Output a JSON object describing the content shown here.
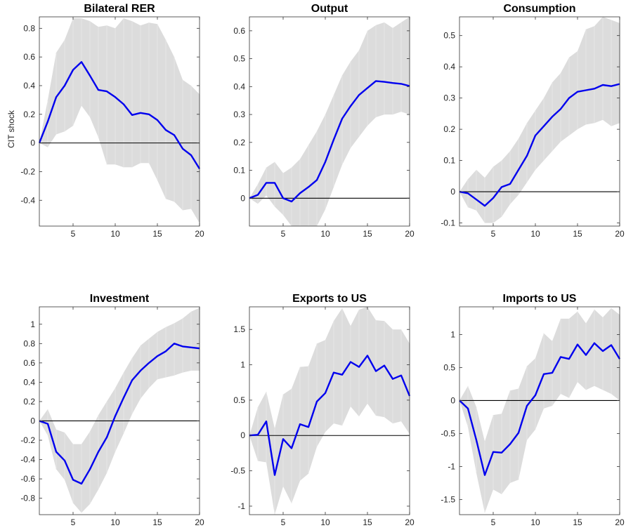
{
  "figure": {
    "row_ylabel": "CIT shock"
  },
  "chart_data": [
    {
      "type": "line",
      "title": "Bilateral RER",
      "ylabel": "CIT shock",
      "xlim": [
        1,
        20
      ],
      "ylim": [
        -0.58,
        0.88
      ],
      "yticks": [
        -0.4,
        -0.2,
        0,
        0.2,
        0.4,
        0.6,
        0.8
      ],
      "ytick_labels": [
        "-0.4",
        "-0.2",
        "0",
        "0.2",
        "0.4",
        "0.6",
        "0.8"
      ],
      "xticks": [
        5,
        10,
        15,
        20
      ],
      "xtick_labels": [
        "5",
        "10",
        "15",
        "20"
      ],
      "x": [
        1,
        2,
        3,
        4,
        5,
        6,
        7,
        8,
        9,
        10,
        11,
        12,
        13,
        14,
        15,
        16,
        17,
        18,
        19,
        20
      ],
      "series": [
        {
          "role": "estimate",
          "color": "#0000ee",
          "values": [
            0.0,
            0.15,
            0.32,
            0.4,
            0.51,
            0.565,
            0.47,
            0.37,
            0.36,
            0.32,
            0.27,
            0.195,
            0.21,
            0.2,
            0.16,
            0.09,
            0.055,
            -0.04,
            -0.085,
            -0.18
          ]
        },
        {
          "role": "band-upper",
          "values": [
            0.0,
            0.3,
            0.63,
            0.72,
            0.87,
            0.87,
            0.85,
            0.81,
            0.82,
            0.8,
            0.87,
            0.85,
            0.82,
            0.84,
            0.83,
            0.72,
            0.6,
            0.44,
            0.4,
            0.34
          ]
        },
        {
          "role": "band-lower",
          "values": [
            0.0,
            -0.03,
            0.06,
            0.08,
            0.12,
            0.26,
            0.18,
            0.04,
            -0.15,
            -0.15,
            -0.17,
            -0.17,
            -0.14,
            -0.14,
            -0.26,
            -0.39,
            -0.41,
            -0.47,
            -0.46,
            -0.56
          ]
        }
      ],
      "zero_line": 0
    },
    {
      "type": "line",
      "title": "Output",
      "xlim": [
        1,
        20
      ],
      "ylim": [
        -0.1,
        0.65
      ],
      "yticks": [
        0,
        0.1,
        0.2,
        0.3,
        0.4,
        0.5,
        0.6
      ],
      "ytick_labels": [
        "0",
        "0.1",
        "0.2",
        "0.3",
        "0.4",
        "0.5",
        "0.6"
      ],
      "xticks": [
        5,
        10,
        15,
        20
      ],
      "xtick_labels": [
        "5",
        "10",
        "15",
        "20"
      ],
      "x": [
        1,
        2,
        3,
        4,
        5,
        6,
        7,
        8,
        9,
        10,
        11,
        12,
        13,
        14,
        15,
        16,
        17,
        18,
        19,
        20
      ],
      "series": [
        {
          "role": "estimate",
          "color": "#0000ee",
          "values": [
            0.0,
            0.012,
            0.055,
            0.055,
            0.0,
            -0.012,
            0.018,
            0.04,
            0.065,
            0.13,
            0.21,
            0.285,
            0.33,
            0.37,
            0.395,
            0.42,
            0.417,
            0.413,
            0.41,
            0.402
          ]
        },
        {
          "role": "band-upper",
          "values": [
            0.0,
            0.05,
            0.11,
            0.13,
            0.09,
            0.11,
            0.14,
            0.19,
            0.24,
            0.3,
            0.37,
            0.44,
            0.49,
            0.53,
            0.6,
            0.62,
            0.63,
            0.61,
            0.63,
            0.65
          ]
        },
        {
          "role": "band-lower",
          "values": [
            0.0,
            -0.02,
            0.01,
            -0.03,
            -0.06,
            -0.1,
            -0.1,
            -0.1,
            -0.1,
            -0.04,
            0.04,
            0.12,
            0.18,
            0.22,
            0.26,
            0.29,
            0.3,
            0.3,
            0.31,
            0.3
          ]
        }
      ],
      "zero_line": 0
    },
    {
      "type": "line",
      "title": "Consumption",
      "xlim": [
        1,
        20
      ],
      "ylim": [
        -0.11,
        0.56
      ],
      "yticks": [
        -0.1,
        0,
        0.1,
        0.2,
        0.3,
        0.4,
        0.5
      ],
      "ytick_labels": [
        "-0.1",
        "0",
        "0.1",
        "0.2",
        "0.3",
        "0.4",
        "0.5"
      ],
      "xticks": [
        5,
        10,
        15,
        20
      ],
      "xtick_labels": [
        "5",
        "10",
        "15",
        "20"
      ],
      "x": [
        1,
        2,
        3,
        4,
        5,
        6,
        7,
        8,
        9,
        10,
        11,
        12,
        13,
        14,
        15,
        16,
        17,
        18,
        19,
        20
      ],
      "series": [
        {
          "role": "estimate",
          "color": "#0000ee",
          "values": [
            0.0,
            -0.005,
            -0.025,
            -0.045,
            -0.02,
            0.015,
            0.025,
            0.07,
            0.115,
            0.18,
            0.21,
            0.24,
            0.265,
            0.3,
            0.32,
            0.325,
            0.33,
            0.342,
            0.338,
            0.345
          ]
        },
        {
          "role": "band-upper",
          "values": [
            0.0,
            0.04,
            0.07,
            0.045,
            0.08,
            0.1,
            0.13,
            0.17,
            0.22,
            0.26,
            0.3,
            0.35,
            0.38,
            0.43,
            0.45,
            0.52,
            0.53,
            0.56,
            0.55,
            0.54
          ]
        },
        {
          "role": "band-lower",
          "values": [
            0.0,
            -0.05,
            -0.06,
            -0.1,
            -0.1,
            -0.08,
            -0.04,
            -0.01,
            0.03,
            0.07,
            0.1,
            0.13,
            0.16,
            0.18,
            0.2,
            0.215,
            0.22,
            0.23,
            0.21,
            0.22
          ]
        }
      ],
      "zero_line": 0
    },
    {
      "type": "line",
      "title": "Investment",
      "xlim": [
        1,
        20
      ],
      "ylim": [
        -0.97,
        1.18
      ],
      "yticks": [
        -0.8,
        -0.6,
        -0.4,
        -0.2,
        0,
        0.2,
        0.4,
        0.6,
        0.8,
        1
      ],
      "ytick_labels": [
        "-0.8",
        "-0.6",
        "-0.4",
        "-0.2",
        "0",
        "0.2",
        "0.4",
        "0.6",
        "0.8",
        "1"
      ],
      "xticks": [
        5,
        10,
        15,
        20
      ],
      "xtick_labels": [
        "5",
        "10",
        "15",
        "20"
      ],
      "x": [
        1,
        2,
        3,
        4,
        5,
        6,
        7,
        8,
        9,
        10,
        11,
        12,
        13,
        14,
        15,
        16,
        17,
        18,
        19,
        20
      ],
      "series": [
        {
          "role": "estimate",
          "color": "#0000ee",
          "values": [
            0.0,
            -0.03,
            -0.32,
            -0.41,
            -0.61,
            -0.65,
            -0.5,
            -0.32,
            -0.17,
            0.05,
            0.24,
            0.42,
            0.52,
            0.6,
            0.67,
            0.72,
            0.8,
            0.77,
            0.76,
            0.75
          ]
        },
        {
          "role": "band-upper",
          "values": [
            0.0,
            0.12,
            -0.09,
            -0.12,
            -0.24,
            -0.24,
            -0.11,
            0.06,
            0.2,
            0.34,
            0.5,
            0.65,
            0.78,
            0.85,
            0.92,
            0.97,
            1.01,
            1.06,
            1.13,
            1.17
          ]
        },
        {
          "role": "band-lower",
          "values": [
            0.0,
            -0.15,
            -0.5,
            -0.61,
            -0.85,
            -0.95,
            -0.86,
            -0.71,
            -0.54,
            -0.32,
            -0.13,
            0.07,
            0.23,
            0.34,
            0.43,
            0.45,
            0.47,
            0.5,
            0.52,
            0.52
          ]
        }
      ],
      "zero_line": 0
    },
    {
      "type": "line",
      "title": "Exports to US",
      "xlim": [
        1,
        20
      ],
      "ylim": [
        -1.12,
        1.82
      ],
      "yticks": [
        -1,
        -0.5,
        0,
        0.5,
        1,
        1.5
      ],
      "ytick_labels": [
        "-1",
        "-0.5",
        "0",
        "0.5",
        "1",
        "1.5"
      ],
      "xticks": [
        5,
        10,
        15,
        20
      ],
      "xtick_labels": [
        "5",
        "10",
        "15",
        "20"
      ],
      "x": [
        1,
        2,
        3,
        4,
        5,
        6,
        7,
        8,
        9,
        10,
        11,
        12,
        13,
        14,
        15,
        16,
        17,
        18,
        19,
        20
      ],
      "series": [
        {
          "role": "estimate",
          "color": "#0000ee",
          "values": [
            0.0,
            0.01,
            0.2,
            -0.56,
            -0.05,
            -0.18,
            0.16,
            0.12,
            0.48,
            0.6,
            0.89,
            0.86,
            1.04,
            0.97,
            1.13,
            0.91,
            0.99,
            0.8,
            0.85,
            0.56
          ]
        },
        {
          "role": "band-upper",
          "values": [
            0.0,
            0.4,
            0.62,
            0.1,
            0.58,
            0.66,
            0.97,
            0.98,
            1.3,
            1.35,
            1.62,
            1.8,
            1.55,
            1.78,
            1.82,
            1.63,
            1.62,
            1.5,
            1.5,
            1.3
          ]
        },
        {
          "role": "band-lower",
          "values": [
            0.0,
            -0.36,
            -0.38,
            -1.12,
            -0.72,
            -0.96,
            -0.64,
            -0.54,
            -0.16,
            0.05,
            0.17,
            0.14,
            0.41,
            0.27,
            0.45,
            0.28,
            0.26,
            0.17,
            0.2,
            0.02
          ]
        }
      ],
      "zero_line": 0
    },
    {
      "type": "line",
      "title": "Imports to US",
      "xlim": [
        1,
        20
      ],
      "ylim": [
        -1.73,
        1.42
      ],
      "yticks": [
        -1.5,
        -1,
        -0.5,
        0,
        0.5,
        1
      ],
      "ytick_labels": [
        "-1.5",
        "-1",
        "-0.5",
        "0",
        "0.5",
        "1"
      ],
      "xticks": [
        5,
        10,
        15,
        20
      ],
      "xtick_labels": [
        "5",
        "10",
        "15",
        "20"
      ],
      "x": [
        1,
        2,
        3,
        4,
        5,
        6,
        7,
        8,
        9,
        10,
        11,
        12,
        13,
        14,
        15,
        16,
        17,
        18,
        19,
        20
      ],
      "series": [
        {
          "role": "estimate",
          "color": "#0000ee",
          "values": [
            0.0,
            -0.12,
            -0.6,
            -1.13,
            -0.78,
            -0.79,
            -0.66,
            -0.49,
            -0.08,
            0.08,
            0.4,
            0.42,
            0.66,
            0.63,
            0.85,
            0.69,
            0.87,
            0.75,
            0.84,
            0.63
          ]
        },
        {
          "role": "band-upper",
          "values": [
            0.0,
            0.22,
            -0.1,
            -0.62,
            -0.22,
            -0.2,
            0.15,
            0.18,
            0.52,
            0.64,
            1.02,
            0.9,
            1.24,
            1.24,
            1.35,
            1.17,
            1.38,
            1.26,
            1.4,
            1.3
          ]
        },
        {
          "role": "band-lower",
          "values": [
            0.0,
            -0.4,
            -1.1,
            -1.7,
            -1.35,
            -1.42,
            -1.25,
            -1.2,
            -0.6,
            -0.44,
            -0.12,
            -0.08,
            0.1,
            0.04,
            0.28,
            0.16,
            0.22,
            0.16,
            0.1,
            0.0
          ]
        }
      ],
      "zero_line": 0
    }
  ]
}
